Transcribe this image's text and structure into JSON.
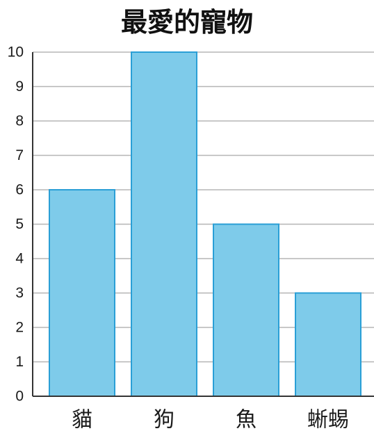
{
  "chart_data": {
    "type": "bar",
    "title": "最愛的寵物",
    "categories": [
      "貓",
      "狗",
      "魚",
      "蜥蜴"
    ],
    "values": [
      6,
      10,
      5,
      3
    ],
    "xlabel": "",
    "ylabel": "",
    "ylim": [
      0,
      10
    ],
    "yticks": [
      0,
      1,
      2,
      3,
      4,
      5,
      6,
      7,
      8,
      9,
      10
    ],
    "grid": true,
    "legend": "none",
    "colors": {
      "bar_fill": "#7ecbea",
      "bar_stroke": "#2a9fd6",
      "grid": "#b5b5b5",
      "axis": "#333333"
    }
  }
}
